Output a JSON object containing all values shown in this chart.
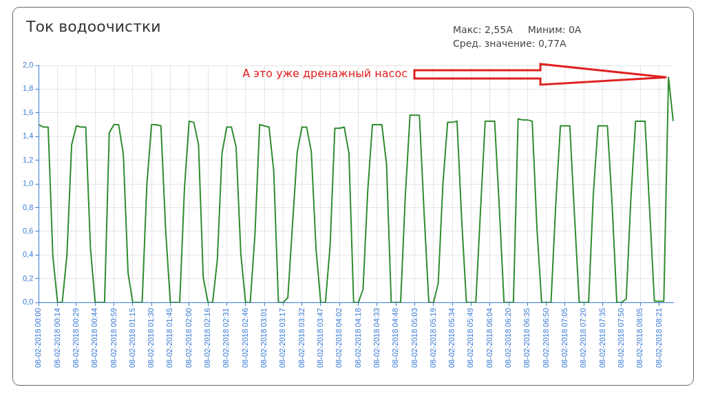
{
  "chart_data": {
    "type": "line",
    "title": "Ток водоочистки",
    "annotations": [
      "Макс: 2,55А",
      "Миним: 0А",
      "Сред. значение: 0,77А",
      "А это уже дренажный насос"
    ],
    "categories": [
      "08-02-2018 00:00",
      null,
      null,
      null,
      "08-02-2018 00:14",
      null,
      null,
      null,
      "08-02-2018 00:29",
      null,
      null,
      null,
      "08-02-2018 00:44",
      null,
      null,
      null,
      "08-02-2018 00:59",
      null,
      null,
      null,
      "08-02-2018 01:15",
      null,
      null,
      null,
      "08-02-2018 01:30",
      null,
      null,
      null,
      "08-02-2018 01:45",
      null,
      null,
      null,
      "08-02-2018 02:00",
      null,
      null,
      null,
      "08-02-2018 02:16",
      null,
      null,
      null,
      "08-02-2018 02:31",
      null,
      null,
      null,
      "08-02-2018 02:46",
      null,
      null,
      null,
      "08-02-2018 03:01",
      null,
      null,
      null,
      "08-02-2018 03:17",
      null,
      null,
      null,
      "08-02-2018 03:32",
      null,
      null,
      null,
      "08-02-2018 03:47",
      null,
      null,
      null,
      "08-02-2018 04:02",
      null,
      null,
      null,
      "08-02-2018 04:18",
      null,
      null,
      null,
      "08-02-2018 04:33",
      null,
      null,
      null,
      "08-02-2018 04:48",
      null,
      null,
      null,
      "08-02-2018 05:03",
      null,
      null,
      null,
      "08-02-2018 05:19",
      null,
      null,
      null,
      "08-02-2018 05:34",
      null,
      null,
      null,
      "08-02-2018 05:49",
      null,
      null,
      null,
      "08-02-2018 06:04",
      null,
      null,
      null,
      "08-02-2018 06:20",
      null,
      null,
      null,
      "08-02-2018 06:35",
      null,
      null,
      null,
      "08-02-2018 06:50",
      null,
      null,
      null,
      "08-02-2018 07:05",
      null,
      null,
      null,
      "08-02-2018 07:20",
      null,
      null,
      null,
      "08-02-2018 07:35",
      null,
      null,
      null,
      "08-02-2018 07:50",
      null,
      null,
      null,
      "08-02-2018 08:05",
      null,
      null,
      null,
      "08-02-2018 08:21",
      null,
      null,
      null
    ],
    "series": [
      {
        "color": "#2e8b2e",
        "values": [
          1.5,
          1.48,
          1.48,
          0.39,
          0,
          0,
          0.4,
          1.33,
          1.49,
          1.48,
          1.48,
          0.46,
          0,
          0,
          0,
          1.43,
          1.5,
          1.5,
          1.25,
          0.25,
          0,
          0,
          0,
          0.99,
          1.5,
          1.5,
          1.49,
          0.61,
          0,
          0,
          0,
          0.96,
          1.53,
          1.52,
          1.33,
          0.21,
          0,
          0,
          0.36,
          1.26,
          1.48,
          1.48,
          1.31,
          0.41,
          0,
          0,
          0.57,
          1.5,
          1.49,
          1.48,
          1.11,
          0,
          0,
          0.04,
          0.66,
          1.27,
          1.48,
          1.48,
          1.27,
          0.45,
          0,
          0,
          0.48,
          1.47,
          1.47,
          1.48,
          1.26,
          0,
          0,
          0.11,
          0.94,
          1.5,
          1.5,
          1.5,
          1.17,
          0,
          0,
          0,
          0.9,
          1.58,
          1.58,
          1.58,
          0.75,
          0,
          0,
          0.16,
          1,
          1.52,
          1.52,
          1.53,
          0.69,
          0,
          0,
          0,
          0.78,
          1.53,
          1.53,
          1.53,
          0.8,
          0,
          0,
          0,
          1.55,
          1.54,
          1.54,
          1.53,
          0.63,
          0,
          0,
          0,
          0.82,
          1.49,
          1.49,
          1.49,
          0.73,
          0,
          0,
          0,
          0.91,
          1.49,
          1.49,
          1.49,
          0.83,
          0,
          0,
          0.03,
          0.88,
          1.53,
          1.53,
          1.53,
          0.77,
          0.01,
          0.01,
          0.01,
          1.9,
          1.53
        ]
      }
    ],
    "ylim": [
      0,
      2
    ],
    "yticks": [
      {
        "value": 0,
        "label": "0,0"
      },
      {
        "value": 0.2,
        "label": "0,2"
      },
      {
        "value": 0.4,
        "label": "0,4"
      },
      {
        "value": 0.6,
        "label": "0,6"
      },
      {
        "value": 0.8,
        "label": "0,8"
      },
      {
        "value": 1,
        "label": "1,0"
      },
      {
        "value": 1.2,
        "label": "1,2"
      },
      {
        "value": 1.4,
        "label": "1,4"
      },
      {
        "value": 1.6,
        "label": "1,6"
      },
      {
        "value": 1.8,
        "label": "1,8"
      },
      {
        "value": 2,
        "label": "2,0"
      }
    ],
    "grid": true,
    "line_style": "solid"
  }
}
